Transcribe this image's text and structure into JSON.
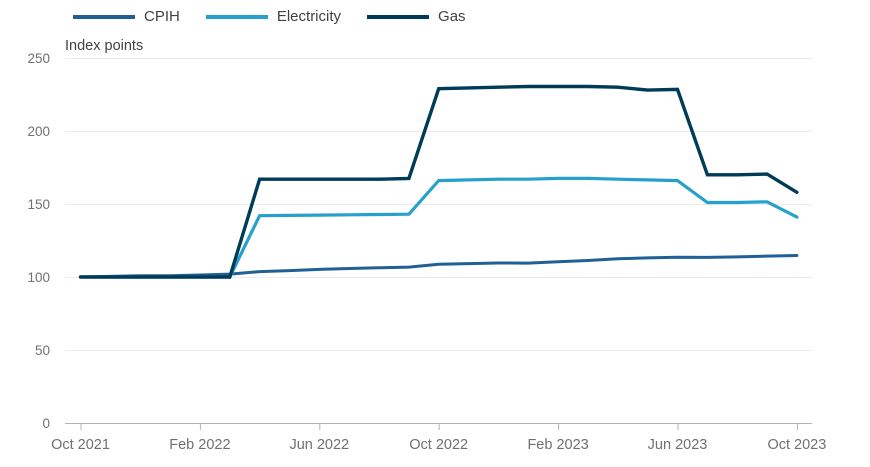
{
  "chart_data": {
    "type": "line",
    "title": "",
    "ylabel": "Index points",
    "xlabel": "",
    "grid": "horizontal",
    "legend_position": "top-left",
    "ylim": [
      0,
      250
    ],
    "y_ticks": [
      0,
      50,
      100,
      150,
      200,
      250
    ],
    "x": [
      "Oct 2021",
      "Nov 2021",
      "Dec 2021",
      "Jan 2022",
      "Feb 2022",
      "Mar 2022",
      "Apr 2022",
      "May 2022",
      "Jun 2022",
      "Jul 2022",
      "Aug 2022",
      "Sep 2022",
      "Oct 2022",
      "Nov 2022",
      "Dec 2022",
      "Jan 2023",
      "Feb 2023",
      "Mar 2023",
      "Apr 2023",
      "May 2023",
      "Jun 2023",
      "Jul 2023",
      "Aug 2023",
      "Sep 2023",
      "Oct 2023"
    ],
    "x_tick_labels": [
      "Oct 2021",
      "Feb 2022",
      "Jun 2022",
      "Oct 2022",
      "Feb 2023",
      "Jun 2023",
      "Oct 2023"
    ],
    "x_tick_indices": [
      0,
      4,
      8,
      12,
      16,
      20,
      24
    ],
    "series": [
      {
        "name": "CPIH",
        "color": "#206095",
        "values": [
          100,
          100.4,
          100.9,
          100.8,
          101.4,
          102,
          103.7,
          104.4,
          105.2,
          105.8,
          106.3,
          106.8,
          108.8,
          109.2,
          109.6,
          109.5,
          110.5,
          111.3,
          112.5,
          113.1,
          113.5,
          113.4,
          113.8,
          114.3,
          114.7
        ]
      },
      {
        "name": "Electricity",
        "color": "#27a0cc",
        "values": [
          100,
          100,
          100,
          100,
          100,
          100,
          142,
          142.2,
          142.4,
          142.6,
          142.8,
          143,
          166,
          166.5,
          167,
          167,
          167.5,
          167.5,
          167,
          166.5,
          166,
          151,
          151,
          151.5,
          141
        ]
      },
      {
        "name": "Gas",
        "color": "#003c57",
        "values": [
          100,
          100,
          100,
          100,
          100,
          100,
          167,
          167,
          167,
          167,
          167,
          167.5,
          229,
          229.5,
          230,
          230.5,
          230.5,
          230.5,
          230,
          228,
          228.5,
          170,
          170,
          170.5,
          158
        ]
      }
    ]
  },
  "colors": {
    "text": "#414042",
    "tick_label": "#707071",
    "gridline": "#ebebeb",
    "axis": "#b3b3b3",
    "background": "#ffffff"
  }
}
